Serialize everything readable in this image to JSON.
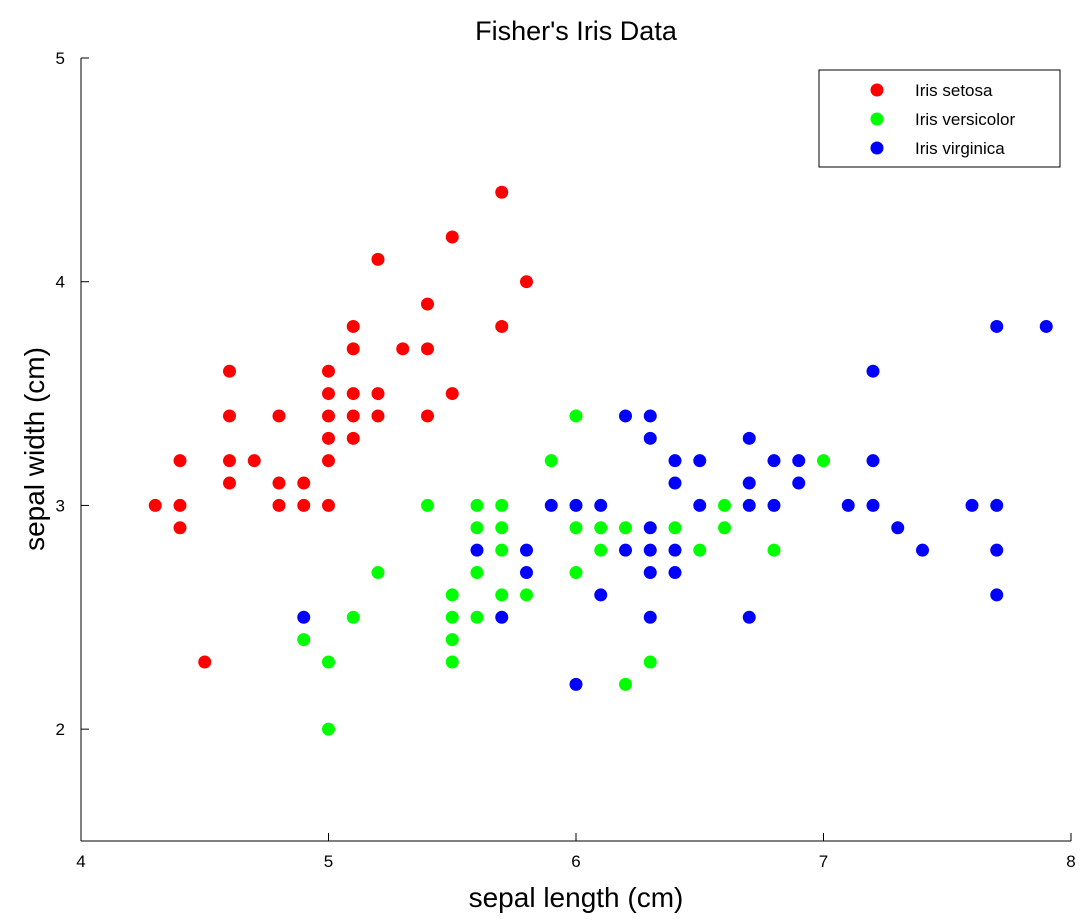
{
  "chart_data": {
    "type": "scatter",
    "title": "Fisher's Iris Data",
    "xlabel": "sepal length (cm)",
    "ylabel": "sepal width (cm)",
    "xlim": [
      4,
      8
    ],
    "ylim": [
      1.5,
      5
    ],
    "xticks": [
      4,
      5,
      6,
      7,
      8
    ],
    "yticks": [
      2,
      3,
      4,
      5
    ],
    "grid": false,
    "legend_position": "top-right",
    "series": [
      {
        "name": "Iris setosa",
        "color": "#ff0000",
        "points": [
          [
            4.3,
            3.0
          ],
          [
            4.4,
            2.9
          ],
          [
            4.4,
            3.0
          ],
          [
            4.4,
            3.2
          ],
          [
            4.5,
            2.3
          ],
          [
            4.6,
            3.1
          ],
          [
            4.6,
            3.2
          ],
          [
            4.6,
            3.4
          ],
          [
            4.6,
            3.6
          ],
          [
            4.7,
            3.2
          ],
          [
            4.8,
            3.0
          ],
          [
            4.8,
            3.1
          ],
          [
            4.8,
            3.4
          ],
          [
            4.9,
            3.0
          ],
          [
            4.9,
            3.1
          ],
          [
            5.0,
            3.0
          ],
          [
            5.0,
            3.2
          ],
          [
            5.0,
            3.3
          ],
          [
            5.0,
            3.4
          ],
          [
            5.0,
            3.5
          ],
          [
            5.0,
            3.6
          ],
          [
            5.1,
            3.3
          ],
          [
            5.1,
            3.4
          ],
          [
            5.1,
            3.5
          ],
          [
            5.1,
            3.7
          ],
          [
            5.1,
            3.8
          ],
          [
            5.2,
            3.4
          ],
          [
            5.2,
            3.5
          ],
          [
            5.2,
            4.1
          ],
          [
            5.3,
            3.7
          ],
          [
            5.4,
            3.4
          ],
          [
            5.4,
            3.7
          ],
          [
            5.4,
            3.9
          ],
          [
            5.5,
            3.5
          ],
          [
            5.5,
            4.2
          ],
          [
            5.7,
            3.8
          ],
          [
            5.7,
            4.4
          ],
          [
            5.8,
            4.0
          ]
        ]
      },
      {
        "name": "Iris versicolor",
        "color": "#00ff00",
        "points": [
          [
            4.9,
            2.4
          ],
          [
            5.0,
            2.0
          ],
          [
            5.0,
            2.3
          ],
          [
            5.1,
            2.5
          ],
          [
            5.2,
            2.7
          ],
          [
            5.4,
            3.0
          ],
          [
            5.5,
            2.3
          ],
          [
            5.5,
            2.4
          ],
          [
            5.5,
            2.5
          ],
          [
            5.5,
            2.6
          ],
          [
            5.6,
            2.5
          ],
          [
            5.6,
            2.7
          ],
          [
            5.6,
            2.9
          ],
          [
            5.6,
            3.0
          ],
          [
            5.7,
            2.6
          ],
          [
            5.7,
            2.8
          ],
          [
            5.7,
            2.9
          ],
          [
            5.7,
            3.0
          ],
          [
            5.8,
            2.6
          ],
          [
            5.9,
            3.2
          ],
          [
            6.0,
            2.7
          ],
          [
            6.0,
            2.9
          ],
          [
            6.0,
            3.4
          ],
          [
            6.1,
            2.8
          ],
          [
            6.1,
            2.9
          ],
          [
            6.2,
            2.2
          ],
          [
            6.2,
            2.9
          ],
          [
            6.3,
            2.3
          ],
          [
            6.4,
            2.9
          ],
          [
            6.5,
            2.8
          ],
          [
            6.6,
            2.9
          ],
          [
            6.6,
            3.0
          ],
          [
            6.8,
            2.8
          ],
          [
            7.0,
            3.2
          ]
        ]
      },
      {
        "name": "Iris virginica",
        "color": "#0000ff",
        "points": [
          [
            4.9,
            2.5
          ],
          [
            5.6,
            2.8
          ],
          [
            5.7,
            2.5
          ],
          [
            5.8,
            2.7
          ],
          [
            5.8,
            2.8
          ],
          [
            5.9,
            3.0
          ],
          [
            6.0,
            2.2
          ],
          [
            6.0,
            3.0
          ],
          [
            6.1,
            2.6
          ],
          [
            6.1,
            3.0
          ],
          [
            6.2,
            2.8
          ],
          [
            6.2,
            3.4
          ],
          [
            6.3,
            2.5
          ],
          [
            6.3,
            2.7
          ],
          [
            6.3,
            2.8
          ],
          [
            6.3,
            2.9
          ],
          [
            6.3,
            3.3
          ],
          [
            6.3,
            3.4
          ],
          [
            6.4,
            2.7
          ],
          [
            6.4,
            2.8
          ],
          [
            6.4,
            3.1
          ],
          [
            6.4,
            3.2
          ],
          [
            6.5,
            3.0
          ],
          [
            6.5,
            3.2
          ],
          [
            6.7,
            2.5
          ],
          [
            6.7,
            3.0
          ],
          [
            6.7,
            3.1
          ],
          [
            6.7,
            3.3
          ],
          [
            6.8,
            3.0
          ],
          [
            6.8,
            3.2
          ],
          [
            6.9,
            3.1
          ],
          [
            6.9,
            3.2
          ],
          [
            7.1,
            3.0
          ],
          [
            7.2,
            3.0
          ],
          [
            7.2,
            3.2
          ],
          [
            7.2,
            3.6
          ],
          [
            7.3,
            2.9
          ],
          [
            7.4,
            2.8
          ],
          [
            7.6,
            3.0
          ],
          [
            7.7,
            2.6
          ],
          [
            7.7,
            2.8
          ],
          [
            7.7,
            3.0
          ],
          [
            7.7,
            3.8
          ],
          [
            7.9,
            3.8
          ]
        ]
      }
    ]
  }
}
